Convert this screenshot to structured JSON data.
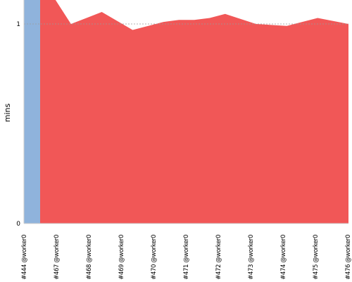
{
  "chart_data": {
    "type": "area",
    "ylabel": "mins",
    "ylim": [
      0,
      1.12
    ],
    "y_ticks": [
      0,
      1
    ],
    "grid": "dashed line at y=1",
    "legend": "none",
    "categories": [
      "#444 @worker0",
      "#467 @worker0",
      "#468 @worker0",
      "#469 @worker0",
      "#470 @worker0",
      "#471 @worker0",
      "#472 @worker0",
      "#473 @worker0",
      "#474 @worker0",
      "#475 @worker0",
      "#476 @worker0"
    ],
    "series": [
      {
        "color": "#8fb3dc",
        "description": "first build only (blue band)",
        "values": [
          1.15,
          null,
          null,
          null,
          null,
          null,
          null,
          null,
          null,
          null,
          null
        ]
      },
      {
        "color": "#f15757",
        "values": [
          1.15,
          1.0,
          1.06,
          0.97,
          1.01,
          1.02,
          1.05,
          1.0,
          0.99,
          1.03,
          1.0
        ],
        "intermediate_points": [
          {
            "between": [
              0,
              1
            ],
            "at": 0.5,
            "y": 1.15
          },
          {
            "between": [
              4,
              5
            ],
            "at": 0.5,
            "y": 1.02
          },
          {
            "between": [
              5,
              6
            ],
            "at": 0.5,
            "y": 1.03
          },
          {
            "between": [
              8,
              9
            ],
            "at": 0.5,
            "y": 1.01
          }
        ]
      }
    ]
  }
}
